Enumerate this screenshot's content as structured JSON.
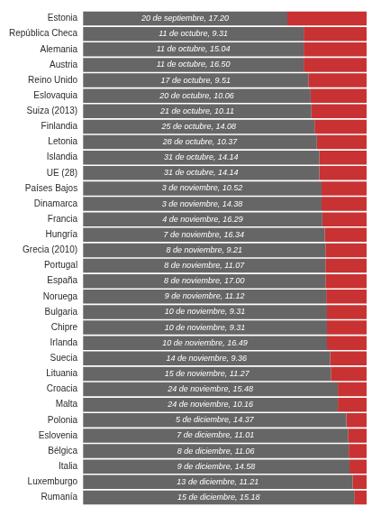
{
  "chart_data": {
    "type": "bar",
    "orientation": "horizontal",
    "stacked": true,
    "grid": false,
    "tick_labels": "y",
    "categories": [
      "Estonia",
      "República Checa",
      "Alemania",
      "Austria",
      "Reino Unido",
      "Eslovaquia",
      "Suiza (2013)",
      "Finlandia",
      "Letonia",
      "Islandia",
      "UE (28)",
      "Países Bajos",
      "Dinamarca",
      "Francia",
      "Hungría",
      "Grecia (2010)",
      "Portugal",
      "España",
      "Noruega",
      "Bulgaria",
      "Chipre",
      "Irlanda",
      "Suecia",
      "Lituania",
      "Croacia",
      "Malta",
      "Polonia",
      "Eslovenia",
      "Bélgica",
      "Italia",
      "Luxemburgo",
      "Rumanía"
    ],
    "series": [
      {
        "color": "#666666",
        "values": [
          263,
          284,
          284,
          284,
          290,
          293,
          294,
          298,
          301,
          304,
          304,
          307,
          307,
          308,
          311,
          312,
          312,
          312,
          313,
          314,
          314,
          314,
          318,
          319,
          328,
          328,
          339,
          341,
          342,
          343,
          347,
          349
        ]
      },
      {
        "color": "#c83232",
        "values": [
          102,
          81,
          81,
          81,
          75,
          72,
          71,
          67,
          64,
          61,
          61,
          58,
          58,
          57,
          54,
          53,
          53,
          53,
          52,
          51,
          51,
          51,
          47,
          46,
          37,
          37,
          26,
          24,
          23,
          22,
          18,
          16
        ]
      }
    ],
    "xlim": [
      0,
      365
    ],
    "annotations": [
      {
        "category": "Estonia",
        "text": "20 de septiembre, 17.20"
      },
      {
        "category": "República Checa",
        "text": "11 de octubre, 9.31"
      },
      {
        "category": "Alemania",
        "text": "11 de octubre, 15.04"
      },
      {
        "category": "Austria",
        "text": "11 de octubre, 16.50"
      },
      {
        "category": "Reino Unido",
        "text": "17 de octubre, 9.51"
      },
      {
        "category": "Eslovaquia",
        "text": "20 de octubre, 10.06"
      },
      {
        "category": "Suiza (2013)",
        "text": "21 de octubre, 10.11"
      },
      {
        "category": "Finlandia",
        "text": "25 de octubre, 14.08"
      },
      {
        "category": "Letonia",
        "text": "28 de octubre, 10.37"
      },
      {
        "category": "Islandia",
        "text": "31 de octubre, 14.14"
      },
      {
        "category": "UE (28)",
        "text": "31 de octubre, 14.14"
      },
      {
        "category": "Países Bajos",
        "text": "3 de noviembre, 10.52"
      },
      {
        "category": "Dinamarca",
        "text": "3 de noviembre, 14.38"
      },
      {
        "category": "Francia",
        "text": "4 de noviembre, 16.29"
      },
      {
        "category": "Hungría",
        "text": "7 de noviembre, 16.34"
      },
      {
        "category": "Grecia (2010)",
        "text": "8 de noviembre, 9.21"
      },
      {
        "category": "Portugal",
        "text": "8 de noviembre, 11.07"
      },
      {
        "category": "España",
        "text": "8 de noviembre, 17.00"
      },
      {
        "category": "Noruega",
        "text": "9 de noviembre, 11.12"
      },
      {
        "category": "Bulgaria",
        "text": "10 de noviembre, 9.31"
      },
      {
        "category": "Chipre",
        "text": "10 de noviembre, 9.31"
      },
      {
        "category": "Irlanda",
        "text": "10 de noviembre, 16.49"
      },
      {
        "category": "Suecia",
        "text": "14 de noviembre, 9.36"
      },
      {
        "category": "Lituania",
        "text": "15 de noviembre, 11.27"
      },
      {
        "category": "Croacia",
        "text": "24 de noviembre, 15.48"
      },
      {
        "category": "Malta",
        "text": "24 de noviembre, 10.16"
      },
      {
        "category": "Polonia",
        "text": "5 de diciembre, 14.37"
      },
      {
        "category": "Eslovenia",
        "text": "7 de diciembre, 11.01"
      },
      {
        "category": "Bélgica",
        "text": "8 de diciembre, 11.06"
      },
      {
        "category": "Italia",
        "text": "9 de diciembre, 14.58"
      },
      {
        "category": "Luxemburgo",
        "text": "13 de diciembre, 11.21"
      },
      {
        "category": "Rumanía",
        "text": "15 de diciembre, 15.18"
      }
    ]
  }
}
